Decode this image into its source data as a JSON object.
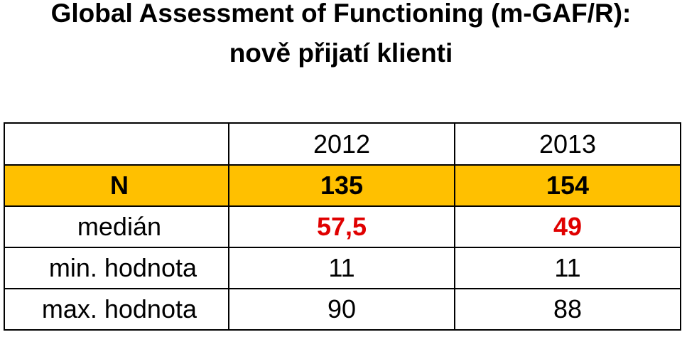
{
  "title": {
    "line1": "Global Assessment of Functioning (m-GAF/R):",
    "line2": "nově přijatí klienti"
  },
  "table": {
    "columns": [
      "",
      "2012",
      "2013"
    ],
    "rows": [
      {
        "label": "N",
        "v2012": "135",
        "v2013": "154"
      },
      {
        "label": "medián",
        "v2012": "57,5",
        "v2013": "49"
      },
      {
        "label": "min. hodnota",
        "v2012": "11",
        "v2013": "11"
      },
      {
        "label": "max. hodnota",
        "v2012": "90",
        "v2013": "88"
      }
    ]
  },
  "colors": {
    "highlight_row": "#ffc000",
    "median_values": "#e00000"
  }
}
